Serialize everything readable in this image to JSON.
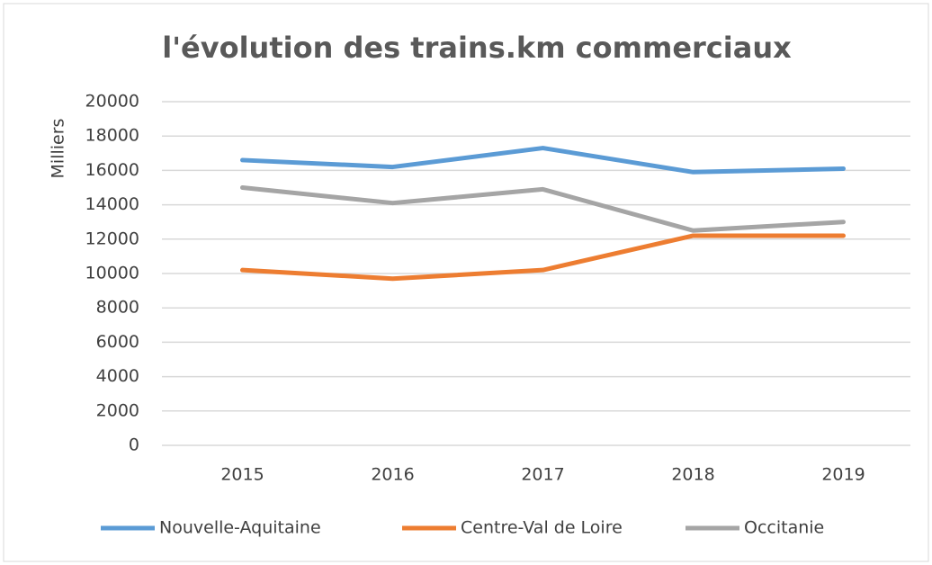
{
  "chart_data": {
    "type": "line",
    "title": "l'évolution des trains.km commerciaux",
    "y_label": "Milliers",
    "categories": [
      "2015",
      "2016",
      "2017",
      "2018",
      "2019"
    ],
    "series": [
      {
        "name": "Nouvelle-Aquitaine",
        "color": "#5b9bd5",
        "values": [
          16600,
          16200,
          17300,
          15900,
          16100
        ]
      },
      {
        "name": "Centre-Val de Loire",
        "color": "#ed7d31",
        "values": [
          10200,
          9700,
          10200,
          12200,
          12200
        ]
      },
      {
        "name": "Occitanie",
        "color": "#a5a5a5",
        "values": [
          15000,
          14100,
          14900,
          12500,
          13000
        ]
      }
    ],
    "ylim": [
      0,
      20000
    ],
    "yticks": [
      0,
      2000,
      4000,
      6000,
      8000,
      10000,
      12000,
      14000,
      16000,
      18000,
      20000
    ],
    "grid": true,
    "legend": "bottom"
  }
}
